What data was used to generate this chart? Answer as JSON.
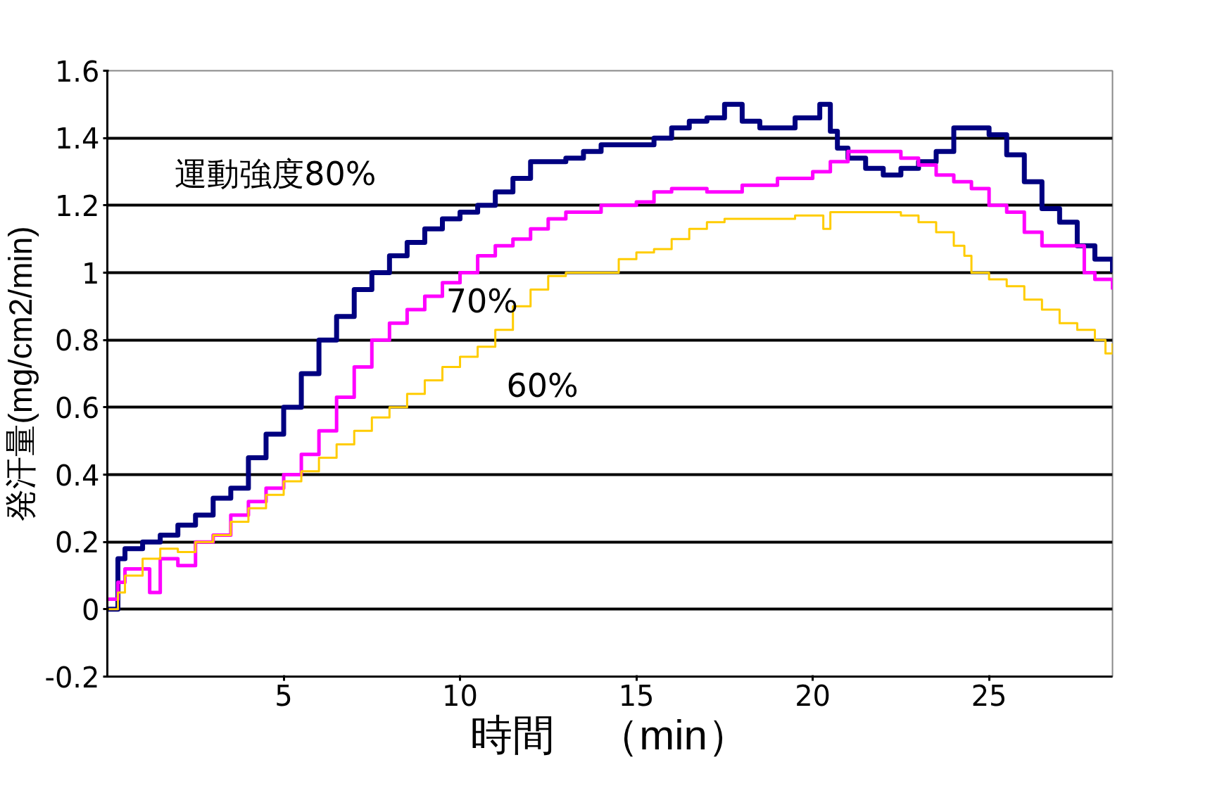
{
  "chart_data": {
    "type": "step",
    "xlabel": "時間　（min）",
    "ylabel": "発汗量(mg/cm2/min)",
    "xlim": [
      0,
      28.5
    ],
    "xticks": [
      5,
      10,
      15,
      20,
      25
    ],
    "ylim": [
      -0.2,
      1.6
    ],
    "yticks": [
      -0.2,
      0,
      0.2,
      0.4,
      0.6,
      0.8,
      1,
      1.2,
      1.4,
      1.6
    ],
    "grid": "y",
    "legend": false,
    "line_style": "solid",
    "marker": "none",
    "series": [
      {
        "name": "運動強度80%",
        "color": "#000080",
        "x": [
          0,
          0.3,
          0.5,
          1,
          1.5,
          2,
          2.5,
          3,
          3.5,
          4,
          4.5,
          5,
          5.5,
          6,
          6.5,
          7,
          7.5,
          8,
          8.5,
          9,
          9.5,
          10,
          10.5,
          11,
          11.5,
          12,
          13,
          13.5,
          14,
          15,
          15.5,
          16,
          16.5,
          17,
          17.5,
          18,
          18.5,
          19,
          19.5,
          20,
          20.2,
          20.5,
          20.7,
          21,
          21.5,
          22,
          22.5,
          23,
          23.5,
          24,
          24.5,
          25,
          25.5,
          26,
          26.5,
          27,
          27.5,
          28,
          28.5
        ],
        "values": [
          0.0,
          0.15,
          0.18,
          0.2,
          0.22,
          0.25,
          0.28,
          0.33,
          0.36,
          0.45,
          0.52,
          0.6,
          0.7,
          0.8,
          0.87,
          0.95,
          1.0,
          1.05,
          1.09,
          1.13,
          1.16,
          1.18,
          1.2,
          1.24,
          1.28,
          1.33,
          1.34,
          1.36,
          1.38,
          1.38,
          1.4,
          1.43,
          1.45,
          1.46,
          1.5,
          1.45,
          1.43,
          1.43,
          1.46,
          1.46,
          1.5,
          1.42,
          1.37,
          1.34,
          1.31,
          1.29,
          1.31,
          1.33,
          1.36,
          1.43,
          1.43,
          1.41,
          1.35,
          1.27,
          1.19,
          1.15,
          1.08,
          1.04,
          1.0
        ]
      },
      {
        "name": "70%",
        "color": "#ff00ff",
        "x": [
          0,
          0.3,
          0.5,
          1,
          1.2,
          1.5,
          2,
          2.5,
          3,
          3.5,
          4,
          4.5,
          5,
          5.5,
          6,
          6.5,
          7,
          7.5,
          8,
          8.5,
          9,
          9.5,
          10,
          10.5,
          11,
          11.5,
          12,
          12.5,
          13,
          14,
          15,
          15.5,
          16,
          17,
          18,
          19,
          19.5,
          20,
          20.5,
          21,
          22,
          22.5,
          23,
          23.5,
          24,
          24.5,
          25,
          25.5,
          26,
          26.5,
          27,
          27.5,
          27.7,
          28,
          28.5
        ],
        "values": [
          0.03,
          0.08,
          0.12,
          0.12,
          0.05,
          0.15,
          0.13,
          0.2,
          0.22,
          0.28,
          0.32,
          0.36,
          0.4,
          0.46,
          0.53,
          0.63,
          0.72,
          0.8,
          0.85,
          0.89,
          0.93,
          0.97,
          1.0,
          1.05,
          1.08,
          1.1,
          1.13,
          1.16,
          1.18,
          1.2,
          1.21,
          1.24,
          1.25,
          1.24,
          1.26,
          1.28,
          1.28,
          1.3,
          1.33,
          1.36,
          1.36,
          1.34,
          1.32,
          1.29,
          1.27,
          1.25,
          1.2,
          1.18,
          1.12,
          1.08,
          1.08,
          1.08,
          1.0,
          0.98,
          0.95
        ]
      },
      {
        "name": "60%",
        "color": "#ffcc00",
        "x": [
          0,
          0.3,
          0.5,
          1,
          1.5,
          2,
          2.5,
          3,
          3.5,
          4,
          4.5,
          5,
          5.5,
          6,
          6.5,
          7,
          7.5,
          8,
          8.5,
          9,
          9.5,
          10,
          10.5,
          11,
          11.5,
          12,
          12.5,
          13,
          14,
          14.5,
          15,
          15.5,
          16,
          16.5,
          17,
          17.5,
          18,
          19,
          19.5,
          20,
          20.3,
          20.5,
          21,
          22,
          22.5,
          23,
          23.5,
          24,
          24.3,
          24.5,
          25,
          25.5,
          26,
          26.5,
          27,
          27.5,
          28,
          28.3,
          28.5
        ],
        "values": [
          0.0,
          0.05,
          0.1,
          0.15,
          0.18,
          0.17,
          0.2,
          0.22,
          0.26,
          0.3,
          0.34,
          0.38,
          0.41,
          0.45,
          0.49,
          0.53,
          0.57,
          0.6,
          0.64,
          0.68,
          0.72,
          0.75,
          0.78,
          0.83,
          0.9,
          0.95,
          0.99,
          1.0,
          1.0,
          1.04,
          1.06,
          1.07,
          1.1,
          1.13,
          1.15,
          1.16,
          1.16,
          1.16,
          1.17,
          1.17,
          1.13,
          1.18,
          1.18,
          1.18,
          1.17,
          1.15,
          1.12,
          1.08,
          1.05,
          1.0,
          0.98,
          0.96,
          0.92,
          0.89,
          0.85,
          0.83,
          0.8,
          0.76,
          0.79
        ]
      }
    ]
  }
}
